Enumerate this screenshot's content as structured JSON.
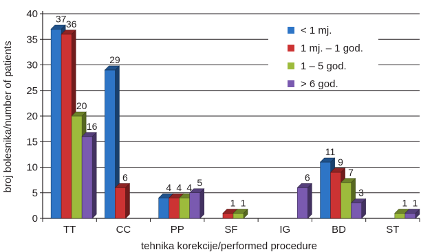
{
  "chart_data": {
    "type": "bar",
    "style": "3d-clustered-column",
    "categories": [
      "TT",
      "CC",
      "PP",
      "SF",
      "IG",
      "BD",
      "ST"
    ],
    "series": [
      {
        "name": "< 1 mj.",
        "color": "#2e75c6",
        "values": [
          37,
          29,
          4,
          null,
          null,
          11,
          null
        ]
      },
      {
        "name": "1 mj. – 1 god.",
        "color": "#cc3333",
        "values": [
          36,
          6,
          4,
          1,
          null,
          9,
          null
        ]
      },
      {
        "name": "1 – 5 god.",
        "color": "#9dbb3c",
        "values": [
          20,
          null,
          4,
          1,
          null,
          7,
          1
        ]
      },
      {
        "name": "> 6 god.",
        "color": "#7a5ab0",
        "values": [
          16,
          null,
          5,
          null,
          6,
          3,
          1
        ]
      }
    ],
    "xlabel": "tehnika korekcije/performed procedure",
    "ylabel": "broj bolesnika/number of patients",
    "ylim": [
      0,
      40
    ],
    "yticks": [
      0,
      5,
      10,
      15,
      20,
      25,
      30,
      35,
      40
    ],
    "grid": true,
    "legend_position": "top-right"
  }
}
